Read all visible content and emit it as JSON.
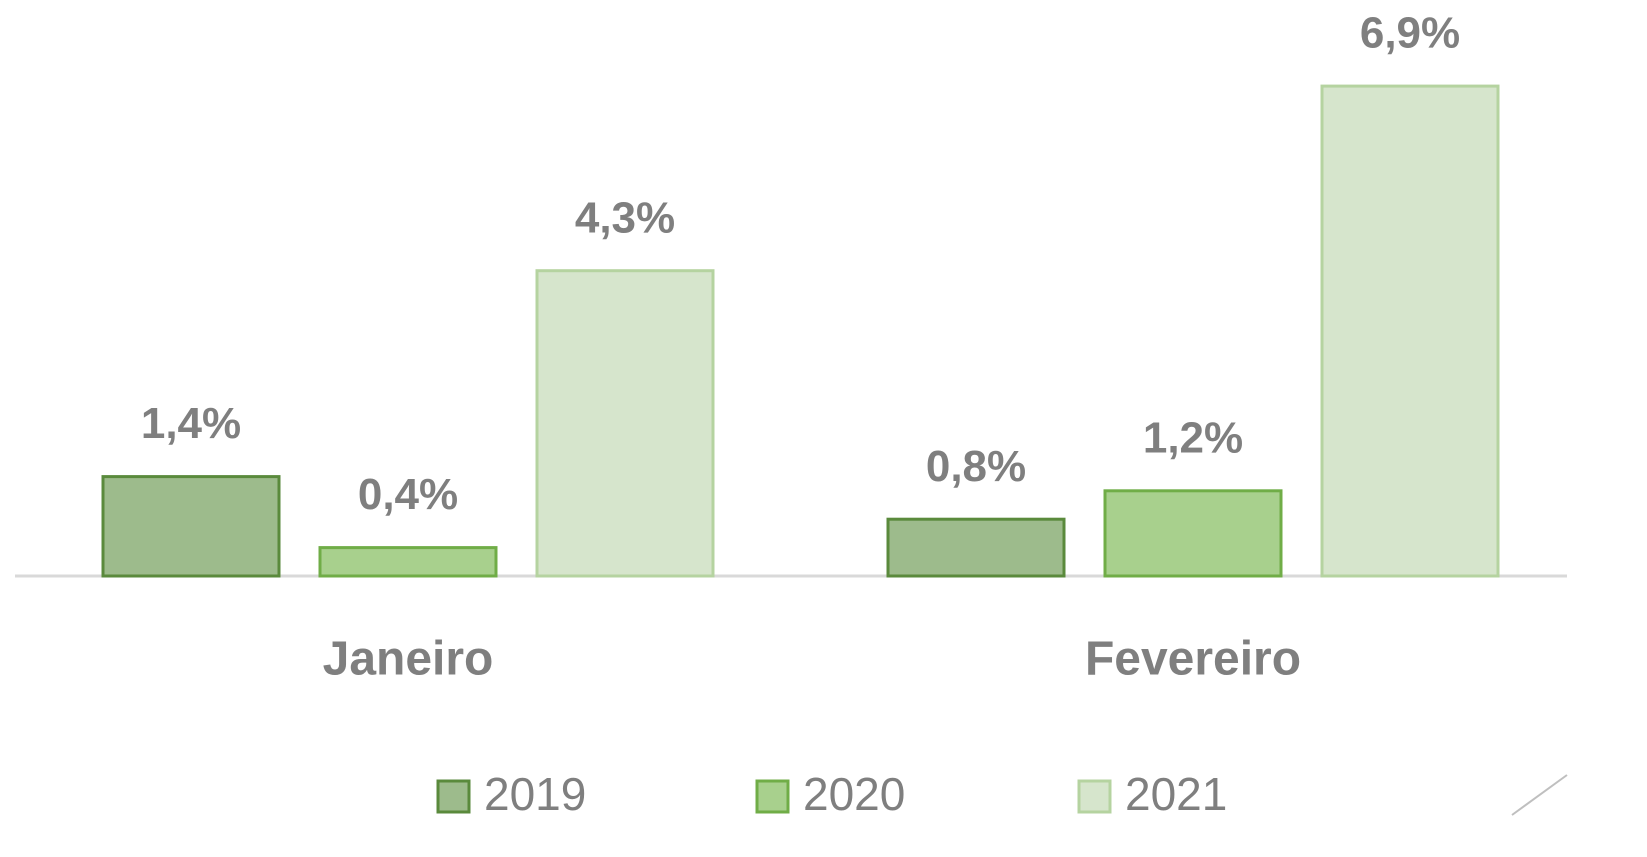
{
  "chart_data": {
    "type": "bar",
    "categories": [
      "Janeiro",
      "Fevereiro"
    ],
    "series": [
      {
        "name": "2019",
        "color": "#9dbb8c",
        "stroke": "#5a8a3c",
        "values": [
          1.4,
          0.8
        ],
        "value_labels": [
          "1,4%",
          "0,8%"
        ]
      },
      {
        "name": "2020",
        "color": "#a8d08d",
        "stroke": "#70ad47",
        "values": [
          0.4,
          1.2
        ],
        "value_labels": [
          "0,4%",
          "1,2%"
        ]
      },
      {
        "name": "2021",
        "color": "#d6e5cc",
        "stroke": "#b5d3a0",
        "values": [
          4.3,
          6.9
        ],
        "value_labels": [
          "4,3%",
          "6,9%"
        ]
      }
    ]
  }
}
